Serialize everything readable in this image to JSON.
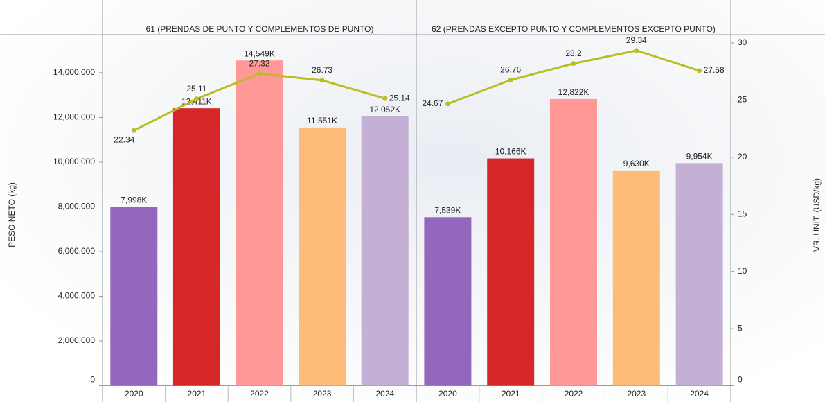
{
  "chart_data": [
    {
      "type": "bar",
      "title": "61 (PRENDAS DE PUNTO Y COMPLEMENTOS DE PUNTO)",
      "y_label": "PESO NETO (kg)",
      "categories": [
        "2020",
        "2021",
        "2022",
        "2023",
        "2024"
      ],
      "ylim": [
        0,
        15330000
      ],
      "yticks": [
        0,
        {
          "value": 2000000,
          "label": "2,000,000"
        },
        {
          "value": 4000000,
          "label": "4,000,000"
        },
        {
          "value": 6000000,
          "label": "6,000,000"
        },
        {
          "value": 8000000,
          "label": "8,000,000"
        },
        {
          "value": 10000000,
          "label": "10,000,000"
        },
        {
          "value": 12000000,
          "label": "12,000,000"
        },
        {
          "value": 14000000,
          "label": "14,000,000"
        }
      ],
      "y2lim": [
        0,
        30
      ],
      "series": [
        {
          "type": "bar",
          "values": [
            7998000,
            12411000,
            14549000,
            11551000,
            12052000
          ],
          "value_labels": [
            "7,998K",
            "12,411K",
            "14,549K",
            "11,551K",
            "12,052K"
          ],
          "colors": [
            "#9467bd",
            "#d62728",
            "#ff9896",
            "#ffbb78",
            "#c5b0d5"
          ]
        },
        {
          "type": "line",
          "axis": "y2",
          "color": "#bcbd22",
          "values": [
            22.34,
            25.11,
            27.32,
            26.73,
            25.14
          ]
        }
      ]
    },
    {
      "type": "bar",
      "title": "62 (PRENDAS EXCEPTO PUNTO Y COMPLEMENTOS EXCEPTO PUNTO)",
      "y2_label": "VR. UNIT. (USD/kg)",
      "categories": [
        "2020",
        "2021",
        "2022",
        "2023",
        "2024"
      ],
      "ylim": [
        0,
        15330000
      ],
      "y2lim": [
        0,
        30
      ],
      "y2ticks": [
        0,
        5,
        10,
        15,
        20,
        25,
        30
      ],
      "series": [
        {
          "type": "bar",
          "values": [
            7539000,
            10166000,
            12822000,
            9630000,
            9954000
          ],
          "value_labels": [
            "7,539K",
            "10,166K",
            "12,822K",
            "9,630K",
            "9,954K"
          ],
          "colors": [
            "#9467bd",
            "#d62728",
            "#ff9896",
            "#ffbb78",
            "#c5b0d5"
          ]
        },
        {
          "type": "line",
          "axis": "y2",
          "color": "#bcbd22",
          "values": [
            24.67,
            26.76,
            28.2,
            29.34,
            27.58
          ]
        }
      ]
    }
  ]
}
